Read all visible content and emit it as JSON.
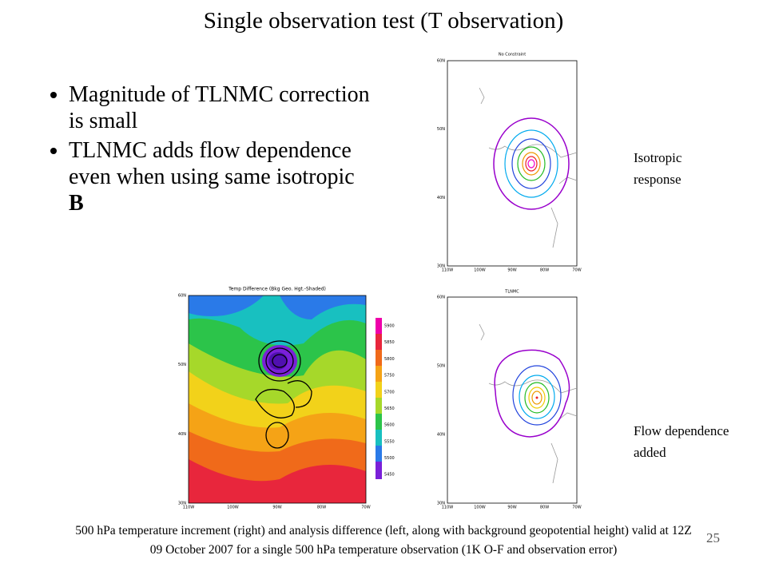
{
  "slide": {
    "title": "Single observation test (T observation)",
    "bullets": [
      {
        "text": "Magnitude of TLNMC correction is small"
      },
      {
        "text": "TLNMC adds flow dependence even when using same isotropic ",
        "bold": "B"
      }
    ],
    "maps": {
      "top_right": {
        "title": "No Constraint",
        "side_label": [
          "Isotropic",
          "response"
        ]
      },
      "bottom_right": {
        "title": "TLNMC",
        "side_label": [
          "Flow dependence",
          "added"
        ]
      },
      "left": {
        "title": "Temp Difference (Bkg Geo. Hgt.-Shaded)"
      },
      "lat_labels": [
        "60N",
        "50N",
        "40N",
        "30N"
      ],
      "lon_labels": [
        "110W",
        "100W",
        "90W",
        "80W",
        "70W"
      ],
      "colorbar_labels": [
        "5900",
        "5850",
        "5800",
        "5750",
        "5700",
        "5650",
        "5600",
        "5550",
        "5500",
        "5450"
      ]
    },
    "caption_lines": [
      "500 hPa temperature increment (right) and analysis difference (left, along with background geopotential height) valid at 12Z",
      "09 October 2007 for a single 500 hPa temperature observation (1K O-F and observation error)"
    ],
    "page_number": "25"
  }
}
